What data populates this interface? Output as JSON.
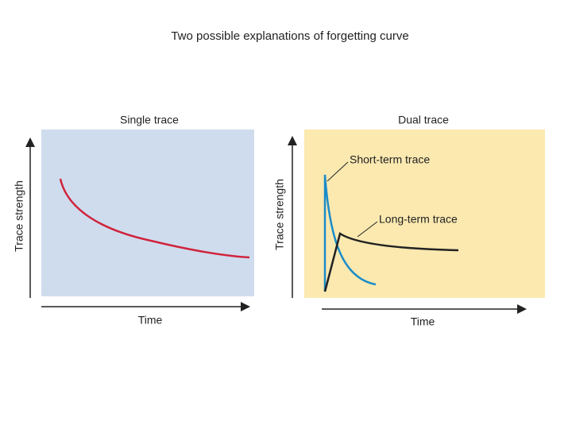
{
  "title": "Two possible explanations of forgetting curve",
  "left_panel": {
    "title": "Single trace",
    "y_label": "Trace strength",
    "x_label": "Time"
  },
  "right_panel": {
    "title": "Dual trace",
    "y_label": "Trace strength",
    "x_label": "Time",
    "labels": [
      "Short-term trace",
      "Long-term trace"
    ]
  }
}
